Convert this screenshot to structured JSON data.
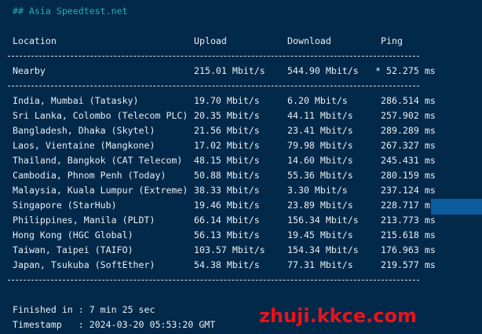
{
  "title": "## Asia Speedtest.net",
  "headers": {
    "location": "Location",
    "upload": "Upload",
    "download": "Download",
    "ping": "Ping"
  },
  "nearby": {
    "location": "Nearby",
    "upload": "215.01 Mbit/s",
    "download": "544.90 Mbit/s",
    "ping": "* 52.275 ms"
  },
  "rows": [
    {
      "location": "India, Mumbai (Tatasky)",
      "upload": "19.70 Mbit/s",
      "download": "6.20 Mbit/s",
      "ping": "286.514 ms"
    },
    {
      "location": "Sri Lanka, Colombo (Telecom PLC)",
      "upload": "20.35 Mbit/s",
      "download": "44.11 Mbit/s",
      "ping": "257.902 ms"
    },
    {
      "location": "Bangladesh, Dhaka (Skytel)",
      "upload": "21.56 Mbit/s",
      "download": "23.41 Mbit/s",
      "ping": "289.289 ms"
    },
    {
      "location": "Laos, Vientaine (Mangkone)",
      "upload": "17.02 Mbit/s",
      "download": "79.98 Mbit/s",
      "ping": "267.327 ms"
    },
    {
      "location": "Thailand, Bangkok (CAT Telecom)",
      "upload": "48.15 Mbit/s",
      "download": "14.60 Mbit/s",
      "ping": "245.431 ms"
    },
    {
      "location": "Cambodia, Phnom Penh (Today)",
      "upload": "50.88 Mbit/s",
      "download": "55.36 Mbit/s",
      "ping": "280.159 ms"
    },
    {
      "location": "Malaysia, Kuala Lumpur (Extreme)",
      "upload": "38.33 Mbit/s",
      "download": "3.30 Mbit/s",
      "ping": "237.124 ms"
    },
    {
      "location": "Singapore (StarHub)",
      "upload": "19.46 Mbit/s",
      "download": "23.89 Mbit/s",
      "ping": "228.717 ms"
    },
    {
      "location": "Philippines, Manila (PLDT)",
      "upload": "66.14 Mbit/s",
      "download": "156.34 Mbit/s",
      "ping": "213.773 ms"
    },
    {
      "location": "Hong Kong (HGC Global)",
      "upload": "56.13 Mbit/s",
      "download": "19.45 Mbit/s",
      "ping": "215.618 ms"
    },
    {
      "location": "Taiwan, Taipei (TAIFO)",
      "upload": "103.57 Mbit/s",
      "download": "154.34 Mbit/s",
      "ping": "176.963 ms"
    },
    {
      "location": "Japan, Tsukuba (SoftEther)",
      "upload": "54.38 Mbit/s",
      "download": "77.31 Mbit/s",
      "ping": "219.577 ms"
    }
  ],
  "finished": "Finished in : 7 min 25 sec",
  "timestamp": "Timestamp   : 2024-03-20 05:53:20 GMT",
  "watermark": "zhuji.kkce.com",
  "colors": {
    "background": "#03294a",
    "title": "#20b2a6",
    "selection": "#0b5c9d",
    "watermark": "#e8131b"
  }
}
